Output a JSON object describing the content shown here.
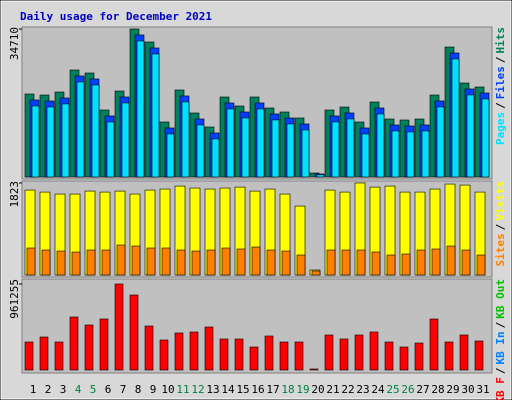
{
  "title": "Daily usage for December 2021",
  "legend_separator": "/",
  "categories": [
    "1",
    "2",
    "3",
    "4",
    "5",
    "6",
    "7",
    "8",
    "9",
    "10",
    "11",
    "12",
    "13",
    "14",
    "15",
    "16",
    "17",
    "18",
    "19",
    "20",
    "21",
    "22",
    "23",
    "24",
    "25",
    "26",
    "27",
    "28",
    "29",
    "30",
    "31"
  ],
  "category_colors": [
    "#000000",
    "#000000",
    "#000000",
    "#008040",
    "#008040",
    "#000000",
    "#000000",
    "#000000",
    "#000000",
    "#000000",
    "#008040",
    "#008040",
    "#000000",
    "#000000",
    "#000000",
    "#000000",
    "#000000",
    "#008040",
    "#008040",
    "#000000",
    "#000000",
    "#000000",
    "#000000",
    "#000000",
    "#008040",
    "#008040",
    "#000000",
    "#000000",
    "#000000",
    "#000000",
    "#000000"
  ],
  "chart_data": [
    {
      "type": "bar",
      "ylim": [
        0,
        34710
      ],
      "yticks": [
        34710
      ],
      "series": [
        {
          "name": "Hits",
          "color": "#00805c",
          "values": [
            19464,
            19229,
            19933,
            25092,
            24388,
            15712,
            20167,
            34710,
            31658,
            12898,
            20402,
            15008,
            11725,
            18760,
            16650,
            18760,
            16181,
            15243,
            13836,
            938,
            15712,
            16415,
            12898,
            17588,
            13601,
            13367,
            13601,
            19229,
            30485,
            22043,
            21105
          ]
        },
        {
          "name": "Files",
          "color": "#0040ff",
          "values": [
            18064,
            17829,
            18533,
            23692,
            22988,
            14312,
            18767,
            33310,
            30258,
            11498,
            19002,
            13608,
            10325,
            17360,
            15250,
            17360,
            14781,
            13843,
            12436,
            712,
            14312,
            15015,
            11498,
            16188,
            12201,
            11967,
            12201,
            17829,
            29085,
            20643,
            19705
          ]
        },
        {
          "name": "Pages",
          "color": "#00e0ff",
          "values": [
            16664,
            16429,
            17133,
            22292,
            21588,
            12912,
            17367,
            31910,
            28858,
            10098,
            17602,
            12208,
            8925,
            15960,
            13850,
            15960,
            13381,
            12443,
            11036,
            520,
            12912,
            13615,
            10098,
            14788,
            10801,
            10567,
            10801,
            16429,
            27685,
            19243,
            18305
          ]
        }
      ]
    },
    {
      "type": "bar",
      "ylim": [
        0,
        1823
      ],
      "yticks": [
        1823
      ],
      "series": [
        {
          "name": "Visits",
          "color": "#ffff00",
          "values": [
            1683,
            1643,
            1604,
            1604,
            1663,
            1643,
            1663,
            1604,
            1683,
            1703,
            1762,
            1723,
            1703,
            1723,
            1742,
            1663,
            1703,
            1604,
            1366,
            99,
            1683,
            1643,
            1823,
            1742,
            1762,
            1643,
            1643,
            1703,
            1802,
            1782,
            1643
          ]
        },
        {
          "name": "Sites",
          "color": "#ff8000",
          "values": [
            535,
            495,
            475,
            455,
            495,
            495,
            594,
            574,
            535,
            535,
            495,
            475,
            495,
            535,
            515,
            554,
            495,
            475,
            396,
            79,
            495,
            495,
            495,
            455,
            396,
            416,
            495,
            515,
            574,
            495,
            396
          ]
        }
      ]
    },
    {
      "type": "bar",
      "ylim": [
        0,
        961255
      ],
      "yticks": [
        961255
      ],
      "series": [
        {
          "name": "KB F",
          "color": "#ff0000",
          "values": [
            312984,
            368874,
            312984,
            592434,
            503010,
            570078,
            961255,
            838350,
            491832,
            335340,
            413586,
            424764,
            480654,
            346518,
            346518,
            257094,
            380052,
            312984,
            312984,
            11178,
            391230,
            346518,
            391230,
            424764,
            312984,
            257094,
            301806,
            570078,
            312984,
            391230,
            324162
          ]
        }
      ],
      "extra_legend": [
        {
          "name": "KB In",
          "color": "#0080ff"
        },
        {
          "name": "KB Out",
          "color": "#00c000"
        }
      ]
    }
  ]
}
